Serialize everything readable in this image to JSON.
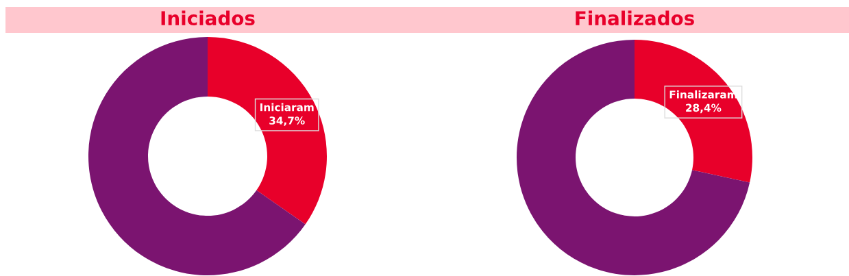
{
  "chart_data": [
    {
      "type": "donut",
      "title": "Iniciados",
      "categories": [
        "Iniciaram",
        null
      ],
      "values": [
        34.7,
        65.3
      ],
      "colors": [
        "#e8002a",
        "#7b1470"
      ],
      "value_labels": [
        "34,7%",
        null
      ]
    },
    {
      "type": "donut",
      "title": "Finalizados",
      "categories": [
        "Finalizaram",
        null
      ],
      "values": [
        28.4,
        71.6
      ],
      "colors": [
        "#e8002a",
        "#7b1470"
      ],
      "value_labels": [
        "28,4%",
        null
      ]
    }
  ]
}
